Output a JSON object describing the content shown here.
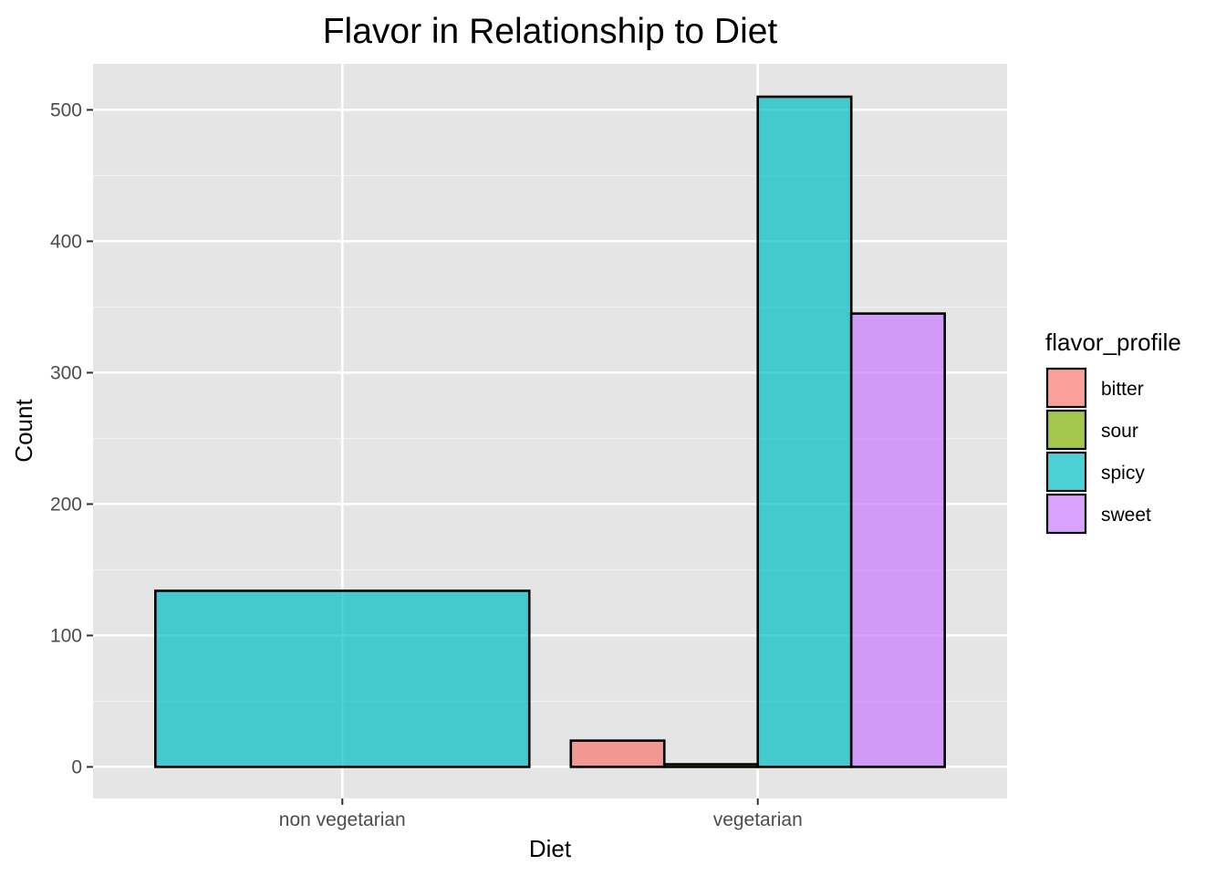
{
  "chart_data": {
    "type": "bar",
    "title": "Flavor in Relationship to Diet",
    "xlabel": "Diet",
    "ylabel": "Count",
    "categories": [
      "non vegetarian",
      "vegetarian"
    ],
    "ylim": [
      -24,
      535
    ],
    "yticks": [
      0,
      100,
      200,
      300,
      400,
      500
    ],
    "grid": true,
    "legend": {
      "title": "flavor_profile",
      "position": "right"
    },
    "series": [
      {
        "name": "bitter",
        "color": "#F8766D",
        "values": [
          null,
          20
        ]
      },
      {
        "name": "sour",
        "color": "#7CAE00",
        "values": [
          null,
          2
        ]
      },
      {
        "name": "spicy",
        "color": "#00BFC4",
        "values": [
          134,
          510
        ]
      },
      {
        "name": "sweet",
        "color": "#C77CFF",
        "values": [
          null,
          345
        ]
      }
    ]
  }
}
